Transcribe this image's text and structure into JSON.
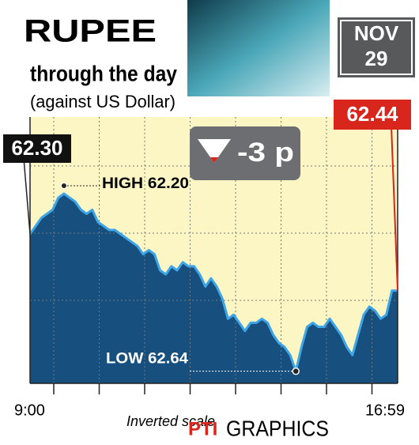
{
  "chart_data": {
    "type": "area",
    "title": "RUPEE",
    "subtitle": "through the day",
    "note": "(against US Dollar)",
    "date_month": "NOV",
    "date_day": "29",
    "change": "-3 p",
    "start_label": "62.30",
    "end_label": "62.44",
    "high_label": "HIGH 62.20",
    "low_label": "LOW 62.64",
    "scale_note": "Inverted scale",
    "source_brand": "PTI",
    "source_text": "GRAPHICS",
    "inverted": true,
    "ylim": [
      62.01,
      62.67
    ],
    "line_color": "#3ea6e6",
    "area_color": "#17507f",
    "background_color": "#fcf5c4",
    "categories": [
      "9:00",
      null,
      null,
      null,
      null,
      null,
      null,
      null,
      null,
      null,
      null,
      null,
      null,
      null,
      null,
      null,
      null,
      null,
      null,
      null,
      null,
      null,
      null,
      null,
      null,
      null,
      null,
      null,
      null,
      null,
      null,
      null,
      null,
      null,
      null,
      null,
      null,
      null,
      null,
      null,
      null,
      null,
      null,
      null,
      null,
      null,
      null,
      null,
      null,
      null,
      null,
      null,
      null,
      null,
      null,
      null,
      null,
      null,
      null,
      null,
      null,
      null,
      null,
      null,
      null,
      "16:59"
    ],
    "values": [
      62.3,
      62.28,
      62.26,
      62.25,
      62.24,
      62.21,
      62.2,
      62.21,
      62.22,
      62.24,
      62.25,
      62.24,
      62.27,
      62.28,
      62.29,
      62.29,
      62.3,
      62.31,
      62.32,
      62.33,
      62.35,
      62.34,
      62.35,
      62.39,
      62.4,
      62.38,
      62.39,
      62.37,
      62.38,
      62.38,
      62.4,
      62.43,
      62.41,
      62.43,
      62.46,
      62.51,
      62.5,
      62.52,
      62.54,
      62.52,
      62.52,
      62.51,
      62.52,
      62.55,
      62.57,
      62.58,
      62.6,
      62.64,
      62.58,
      62.53,
      62.52,
      62.53,
      62.53,
      62.51,
      62.53,
      62.55,
      62.58,
      62.6,
      62.55,
      62.5,
      62.48,
      62.49,
      62.51,
      62.5,
      62.44,
      62.44
    ]
  }
}
